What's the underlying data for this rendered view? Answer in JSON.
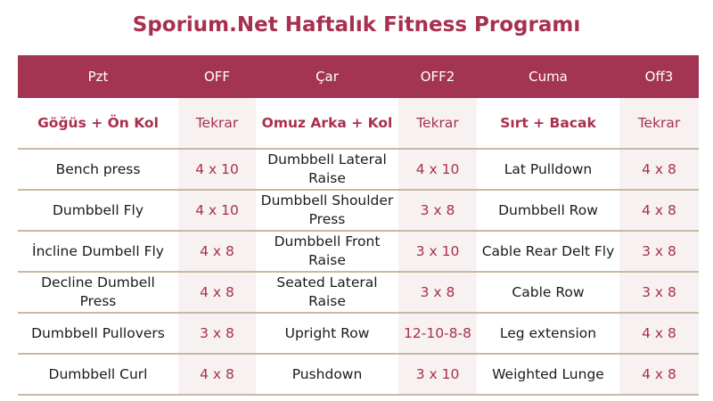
{
  "title": "Sporium.Net Haftalık Fitness Programı",
  "header": [
    "Pzt",
    "OFF",
    "Çar",
    "OFF2",
    "Cuma",
    "Off3"
  ],
  "subheader": [
    "Göğüs + Ön Kol",
    "Tekrar",
    "Omuz Arka + Kol",
    "Tekrar",
    "Sırt + Bacak",
    "Tekrar"
  ],
  "rows": [
    [
      "Bench press",
      "4 x 10",
      "Dumbbell Lateral Raise",
      "4 x 10",
      "Lat Pulldown",
      "4 x 8"
    ],
    [
      "Dumbbell Fly",
      "4 x 10",
      "Dumbbell Shoulder Press",
      "3 x 8",
      "Dumbbell Row",
      "4 x 8"
    ],
    [
      "İncline Dumbell Fly",
      "4 x 8",
      "Dumbbell Front Raise",
      "3 x 10",
      "Cable Rear Delt Fly",
      "3 x 8"
    ],
    [
      "Decline Dumbell Press",
      "4 x 8",
      "Seated Lateral Raise",
      "3 x 8",
      "Cable Row",
      "3 x 8"
    ],
    [
      "Dumbbell Pullovers",
      "3 x 8",
      "Upright Row",
      "12-10-8-8",
      "Leg extension",
      "4 x 8"
    ],
    [
      "Dumbbell Curl",
      "4 x 8",
      "Pushdown",
      "3 x 10",
      "Weighted Lunge",
      "4 x 8"
    ]
  ],
  "colors": {
    "accent": "#a33553",
    "rep_background": "#f7f1f2",
    "divider": "#c8b8a4"
  }
}
